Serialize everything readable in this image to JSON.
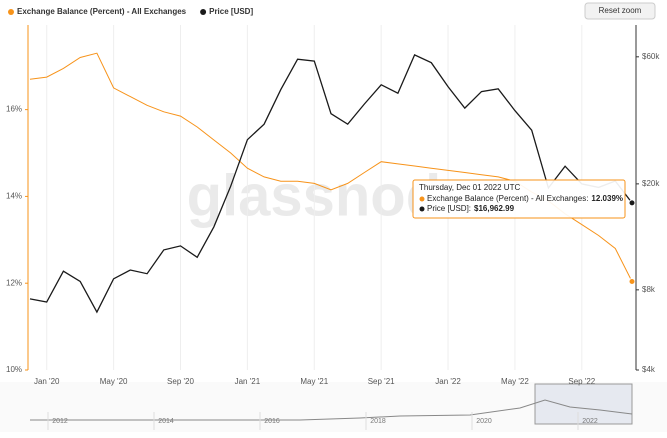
{
  "chart_data": {
    "type": "line",
    "legend": "top-left",
    "grid": true,
    "watermark": "glassnode",
    "reset_button": "Reset zoom",
    "x": [
      "2019-12",
      "2020-01",
      "2020-02",
      "2020-03",
      "2020-04",
      "2020-05",
      "2020-06",
      "2020-07",
      "2020-08",
      "2020-09",
      "2020-10",
      "2020-11",
      "2020-12",
      "2021-01",
      "2021-02",
      "2021-03",
      "2021-04",
      "2021-05",
      "2021-06",
      "2021-07",
      "2021-08",
      "2021-09",
      "2021-10",
      "2021-11",
      "2021-12",
      "2022-01",
      "2022-02",
      "2022-03",
      "2022-04",
      "2022-05",
      "2022-06",
      "2022-07",
      "2022-08",
      "2022-09",
      "2022-10",
      "2022-11",
      "2022-12"
    ],
    "xticks": [
      {
        "value": "2020-01",
        "label": "Jan '20"
      },
      {
        "value": "2020-05",
        "label": "May '20"
      },
      {
        "value": "2020-09",
        "label": "Sep '20"
      },
      {
        "value": "2021-01",
        "label": "Jan '21"
      },
      {
        "value": "2021-05",
        "label": "May '21"
      },
      {
        "value": "2021-09",
        "label": "Sep '21"
      },
      {
        "value": "2022-01",
        "label": "Jan '22"
      },
      {
        "value": "2022-05",
        "label": "May '22"
      },
      {
        "value": "2022-09",
        "label": "Sep '22"
      }
    ],
    "ylim": [
      10,
      17.95
    ],
    "yticks": [
      {
        "value": 10,
        "label": "10%"
      },
      {
        "value": 12,
        "label": "12%"
      },
      {
        "value": 14,
        "label": "14%"
      },
      {
        "value": 16,
        "label": "16%"
      }
    ],
    "y2lim": [
      4000,
      79000
    ],
    "y2log": true,
    "y2ticks": [
      {
        "value": 4000,
        "label": "$4k"
      },
      {
        "value": 8000,
        "label": "$8k"
      },
      {
        "value": 20000,
        "label": "$20k"
      },
      {
        "value": 60000,
        "label": "$60k"
      }
    ],
    "series": [
      {
        "name": "Exchange Balance (Percent) - All Exchanges",
        "color": "#f7931a",
        "values": [
          16.7,
          16.75,
          16.95,
          17.2,
          17.3,
          16.5,
          16.3,
          16.1,
          15.95,
          15.85,
          15.6,
          15.3,
          15.0,
          14.65,
          14.45,
          14.35,
          14.35,
          14.3,
          14.15,
          14.3,
          14.55,
          14.8,
          14.75,
          14.7,
          14.65,
          14.6,
          14.55,
          14.5,
          14.45,
          14.35,
          14.1,
          13.9,
          13.6,
          13.35,
          13.1,
          12.8,
          12.039
        ]
      },
      {
        "name": "Price [USD]",
        "color": "#1a1a1a",
        "axis": "y2",
        "values": [
          7400,
          7200,
          9400,
          8600,
          6600,
          8800,
          9500,
          9200,
          11300,
          11700,
          10600,
          13800,
          19600,
          29300,
          33500,
          45200,
          58800,
          57800,
          36700,
          33500,
          39900,
          47100,
          43800,
          61000,
          57000,
          46300,
          38500,
          44400,
          45500,
          37700,
          31800,
          19300,
          23300,
          20000,
          19400,
          20500,
          16962.99
        ]
      }
    ],
    "tooltip": {
      "title": "Thursday, Dec 01 2022 UTC",
      "rows": [
        {
          "label": "Exchange Balance (Percent) - All Exchanges:",
          "value_label": "12.039%"
        },
        {
          "label": "Price [USD]:",
          "value_label": "$16,962.99"
        }
      ]
    },
    "navigator": {
      "labels": [
        "2012",
        "2014",
        "2016",
        "2018",
        "2020",
        "2022"
      ]
    }
  }
}
